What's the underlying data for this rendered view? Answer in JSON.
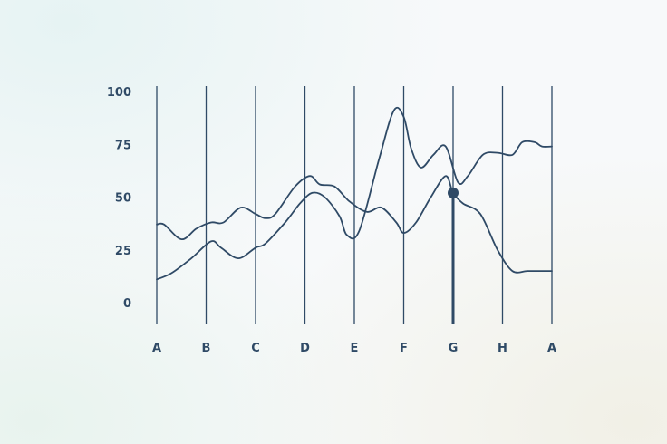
{
  "chart_data": {
    "type": "line",
    "categories": [
      "A",
      "B",
      "C",
      "D",
      "E",
      "F",
      "G",
      "H",
      "A"
    ],
    "y_ticks": [
      "100",
      "75",
      "50",
      "25",
      "0"
    ],
    "ylim": [
      0,
      100
    ],
    "grid": "vertical lines at each category",
    "colors": {
      "line": "#2f4a66",
      "text": "#2f4a66",
      "marker": "#2f4a66"
    },
    "series": [
      {
        "x": [
          0,
          0.15,
          0.5,
          0.8,
          1.1,
          1.35,
          1.7,
          2.0,
          2.2,
          2.4,
          2.8,
          3.1,
          3.3,
          3.6,
          3.9,
          4.25,
          4.55,
          4.85,
          5.0,
          5.25,
          5.55,
          5.85,
          6.0,
          6.2,
          6.55,
          6.9,
          7.2,
          7.5,
          7.8,
          8.0
        ],
        "y": [
          37,
          37,
          30,
          35,
          38,
          38,
          45,
          42,
          40,
          42,
          55,
          60,
          56,
          55,
          48,
          43,
          45,
          38,
          33,
          38,
          50,
          60,
          52,
          47,
          42,
          25,
          15,
          15,
          15,
          15
        ]
      },
      {
        "x": [
          0,
          0.3,
          0.7,
          1.1,
          1.3,
          1.65,
          2.0,
          2.2,
          2.6,
          2.9,
          3.15,
          3.4,
          3.7,
          3.85,
          4.1,
          4.5,
          4.8,
          5.0,
          5.15,
          5.35,
          5.6,
          5.85,
          6.1,
          6.3,
          6.6,
          6.9,
          7.2,
          7.4,
          7.65,
          7.8,
          8.0
        ],
        "y": [
          11,
          14,
          21,
          29,
          26,
          21,
          26,
          28,
          38,
          47,
          52,
          50,
          41,
          32,
          34,
          68,
          91,
          88,
          73,
          64,
          70,
          74,
          57,
          60,
          70,
          71,
          70,
          76,
          76,
          74,
          74
        ]
      }
    ],
    "highlight": {
      "category": "G",
      "value": 52
    }
  }
}
